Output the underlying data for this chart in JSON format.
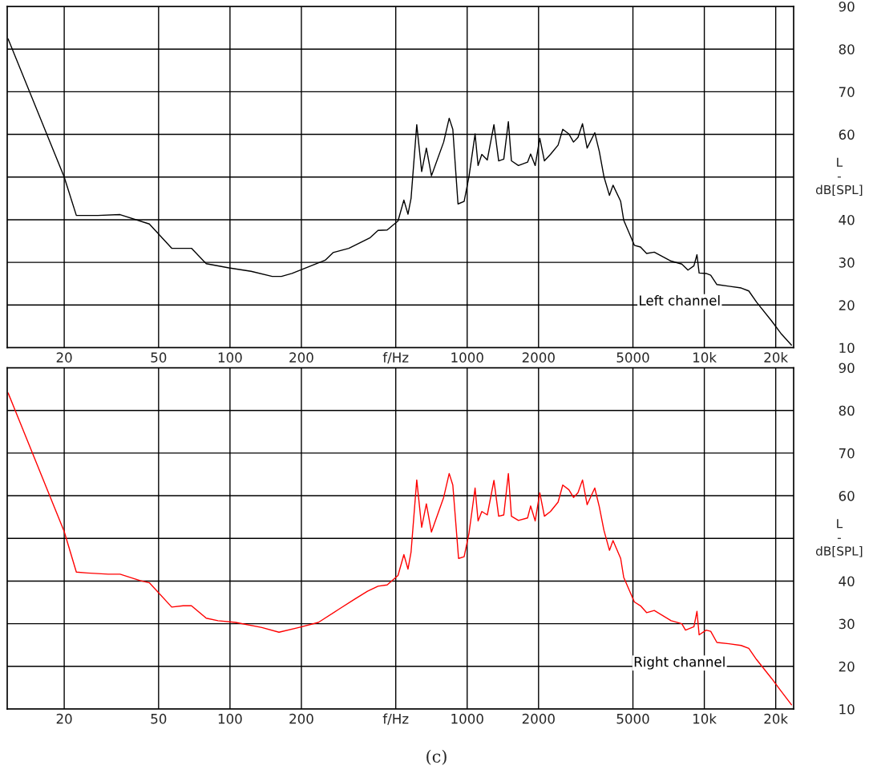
{
  "chart_data": [
    {
      "type": "line",
      "log": "x",
      "grid": true,
      "ylabel": "L\n-\ndB[SPL]",
      "xlim": [
        11.5,
        23800
      ],
      "ylim": [
        10,
        90
      ],
      "xticks": [
        20,
        50,
        100,
        200,
        {
          "value": 500,
          "label": "f/Hz"
        },
        1000,
        2000,
        5000,
        {
          "value": 10000,
          "label": "10k"
        },
        {
          "value": 20000,
          "label": "20k"
        }
      ],
      "yticks": [
        10,
        20,
        30,
        40,
        {
          "value": 50,
          "label": null
        },
        60,
        70,
        80,
        90
      ],
      "series": [
        {
          "name": "Left channel",
          "color": "#000000",
          "x": [
            11.6,
            20,
            22.5,
            27.7,
            34.4,
            45.7,
            56.8,
            68.8,
            79.4,
            99,
            122.7,
            150.7,
            164.8,
            182.6,
            252,
            272,
            317,
            390,
            421,
            460,
            511,
            541,
            563,
            580,
            613,
            643,
            673,
            707,
            796,
            840,
            870,
            915,
            971,
            1018,
            1080,
            1112,
            1153,
            1216,
            1297,
            1358,
            1427,
            1492,
            1537,
            1645,
            1798,
            1852,
            1936,
            2024,
            2117,
            2245,
            2418,
            2530,
            2685,
            2808,
            2933,
            3065,
            3205,
            3452,
            3608,
            3773,
            3981,
            4122,
            4439,
            4571,
            5070,
            5383,
            5710,
            6152,
            7244,
            8035,
            8531,
            9040,
            9311,
            9508,
            10180,
            10640,
            11300,
            12700,
            14300,
            15400,
            16600,
            19200,
            21000,
            23300
          ],
          "values": [
            82.4,
            50,
            41,
            41,
            41.2,
            39,
            33.3,
            33.3,
            29.7,
            28.7,
            27.9,
            26.7,
            26.7,
            27.4,
            30.5,
            32.3,
            33.3,
            35.8,
            37.5,
            37.6,
            39.7,
            44.6,
            41.3,
            45,
            62.3,
            51.3,
            56.8,
            50.3,
            58.2,
            63.8,
            61.2,
            43.7,
            44.3,
            50.1,
            60.1,
            52.7,
            55.3,
            54,
            62.3,
            53.8,
            54.2,
            63,
            53.8,
            52.7,
            53.5,
            55.4,
            52.7,
            59.1,
            53.8,
            55.3,
            57.5,
            61.2,
            60.1,
            58.2,
            59.3,
            62.5,
            56.8,
            60.4,
            56,
            50.1,
            45.7,
            48.1,
            44.3,
            39.9,
            34,
            33.6,
            32.1,
            32.4,
            30.3,
            29.6,
            28.2,
            29.2,
            31.8,
            27.5,
            27.4,
            27,
            24.8,
            24.4,
            24,
            23.3,
            20.7,
            16.3,
            13.4,
            10.6
          ]
        }
      ]
    },
    {
      "type": "line",
      "log": "x",
      "grid": true,
      "ylabel": "L\n-\ndB[SPL]",
      "xlim": [
        11.5,
        23800
      ],
      "ylim": [
        10,
        90
      ],
      "xticks": [
        20,
        50,
        100,
        200,
        {
          "value": 500,
          "label": "f/Hz"
        },
        1000,
        2000,
        5000,
        {
          "value": 10000,
          "label": "10k"
        },
        {
          "value": 20000,
          "label": "20k"
        }
      ],
      "yticks": [
        10,
        20,
        30,
        40,
        {
          "value": 50,
          "label": null
        },
        60,
        70,
        80,
        90
      ],
      "annotations": [
        "(c)"
      ],
      "series": [
        {
          "name": "Right channel",
          "color": "#ff0000",
          "x": [
            11.6,
            20,
            22.5,
            25,
            30.7,
            34.4,
            41.8,
            45.7,
            56.8,
            63.4,
            68.8,
            79.4,
            89,
            105.5,
            136.3,
            160.9,
            195,
            236,
            288,
            334,
            380,
            421,
            460,
            511,
            541,
            563,
            580,
            613,
            643,
            673,
            707,
            796,
            840,
            870,
            920,
            971,
            1018,
            1080,
            1112,
            1153,
            1216,
            1297,
            1358,
            1427,
            1492,
            1537,
            1645,
            1798,
            1852,
            1936,
            2024,
            2117,
            2245,
            2418,
            2530,
            2685,
            2808,
            2933,
            3065,
            3205,
            3452,
            3608,
            3773,
            3981,
            4122,
            4439,
            4571,
            5070,
            5383,
            5710,
            6152,
            7244,
            8035,
            8330,
            9040,
            9311,
            9508,
            10180,
            10640,
            11300,
            12700,
            14300,
            15400,
            16600,
            19200,
            21000,
            23300
          ],
          "values": [
            84.1,
            51.6,
            42.1,
            41.9,
            41.6,
            41.6,
            40.1,
            39.6,
            33.9,
            34.2,
            34.2,
            31.3,
            30.7,
            30.3,
            29.1,
            28,
            29.1,
            30.3,
            33.4,
            35.7,
            37.6,
            38.8,
            39.1,
            41.3,
            46.2,
            42.8,
            46.8,
            63.7,
            52.6,
            58.1,
            51.5,
            59.6,
            65.2,
            62.5,
            45.3,
            45.7,
            51.2,
            61.8,
            54.1,
            56.3,
            55.5,
            63.6,
            55.2,
            55.5,
            65.2,
            55.2,
            54.2,
            54.8,
            57.6,
            54.1,
            60.7,
            55.2,
            56.3,
            58.5,
            62.5,
            61.4,
            59.6,
            60.7,
            63.7,
            57.9,
            61.8,
            57.4,
            51.9,
            47.2,
            49.5,
            45.3,
            40.9,
            35.1,
            34.2,
            32.6,
            33.1,
            30.7,
            30,
            28.5,
            29.3,
            32.9,
            27.4,
            28.5,
            28.2,
            25.6,
            25.3,
            24.9,
            24.2,
            21.6,
            17.2,
            14.3,
            11
          ]
        }
      ]
    }
  ]
}
